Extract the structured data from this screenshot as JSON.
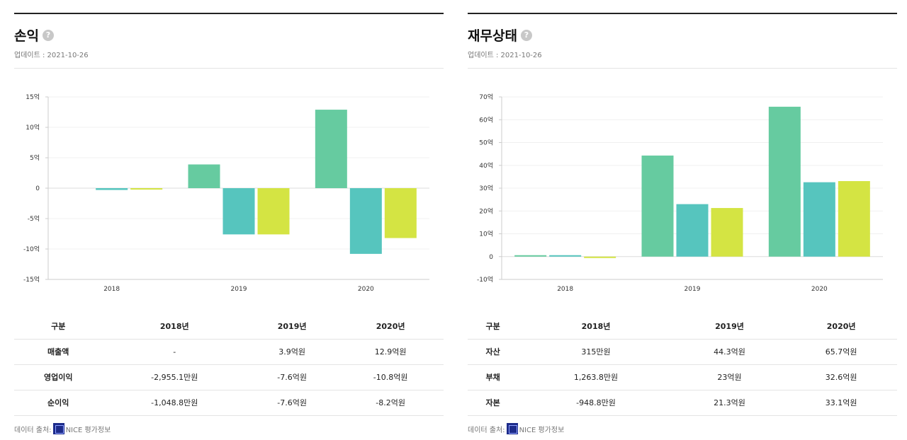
{
  "panels": [
    {
      "title": "손익",
      "help": "?",
      "update": "업데이트 : 2021-10-26",
      "table": {
        "headers": [
          "구분",
          "2018년",
          "2019년",
          "2020년"
        ],
        "rows": [
          [
            "매출액",
            "-",
            "3.9억원",
            "12.9억원"
          ],
          [
            "영업이익",
            "-2,955.1만원",
            "-7.6억원",
            "-10.8억원"
          ],
          [
            "순이익",
            "-1,048.8만원",
            "-7.6억원",
            "-8.2억원"
          ]
        ]
      },
      "source": {
        "prefix": "데이터 출처:",
        "name": "NICE 평가정보"
      }
    },
    {
      "title": "재무상태",
      "help": "?",
      "update": "업데이트 : 2021-10-26",
      "table": {
        "headers": [
          "구분",
          "2018년",
          "2019년",
          "2020년"
        ],
        "rows": [
          [
            "자산",
            "315만원",
            "44.3억원",
            "65.7억원"
          ],
          [
            "부채",
            "1,263.8만원",
            "23억원",
            "32.6억원"
          ],
          [
            "자본",
            "-948.8만원",
            "21.3억원",
            "33.1억원"
          ]
        ]
      },
      "source": {
        "prefix": "데이터 출처:",
        "name": "NICE 평가정보"
      }
    }
  ],
  "chart_data": [
    {
      "type": "bar",
      "categories": [
        "2018",
        "2019",
        "2020"
      ],
      "series": [
        {
          "name": "매출액",
          "color": "#66cba0",
          "values": [
            0,
            3.9,
            12.9
          ]
        },
        {
          "name": "영업이익",
          "color": "#56c5be",
          "values": [
            -0.29551,
            -7.6,
            -10.8
          ]
        },
        {
          "name": "순이익",
          "color": "#d4e443",
          "values": [
            -0.10488,
            -7.6,
            -8.2
          ]
        }
      ],
      "ylim": [
        -15,
        15
      ],
      "yticks": [
        15,
        10,
        5,
        0,
        -5,
        -10,
        -15
      ],
      "ytick_labels": [
        "15억",
        "10억",
        "5억",
        "0",
        "-5억",
        "-10억",
        "-15억"
      ],
      "grid": true
    },
    {
      "type": "bar",
      "categories": [
        "2018",
        "2019",
        "2020"
      ],
      "series": [
        {
          "name": "자산",
          "color": "#66cba0",
          "values": [
            0.0315,
            44.3,
            65.7
          ]
        },
        {
          "name": "부채",
          "color": "#56c5be",
          "values": [
            0.126,
            23,
            32.6
          ]
        },
        {
          "name": "자본",
          "color": "#d4e443",
          "values": [
            -0.0949,
            21.3,
            33.1
          ]
        }
      ],
      "ylim": [
        -10,
        70
      ],
      "yticks": [
        70,
        60,
        50,
        40,
        30,
        20,
        10,
        0,
        -10
      ],
      "ytick_labels": [
        "70억",
        "60억",
        "50억",
        "40억",
        "30억",
        "20억",
        "10억",
        "0",
        "-10억"
      ],
      "grid": true
    }
  ]
}
